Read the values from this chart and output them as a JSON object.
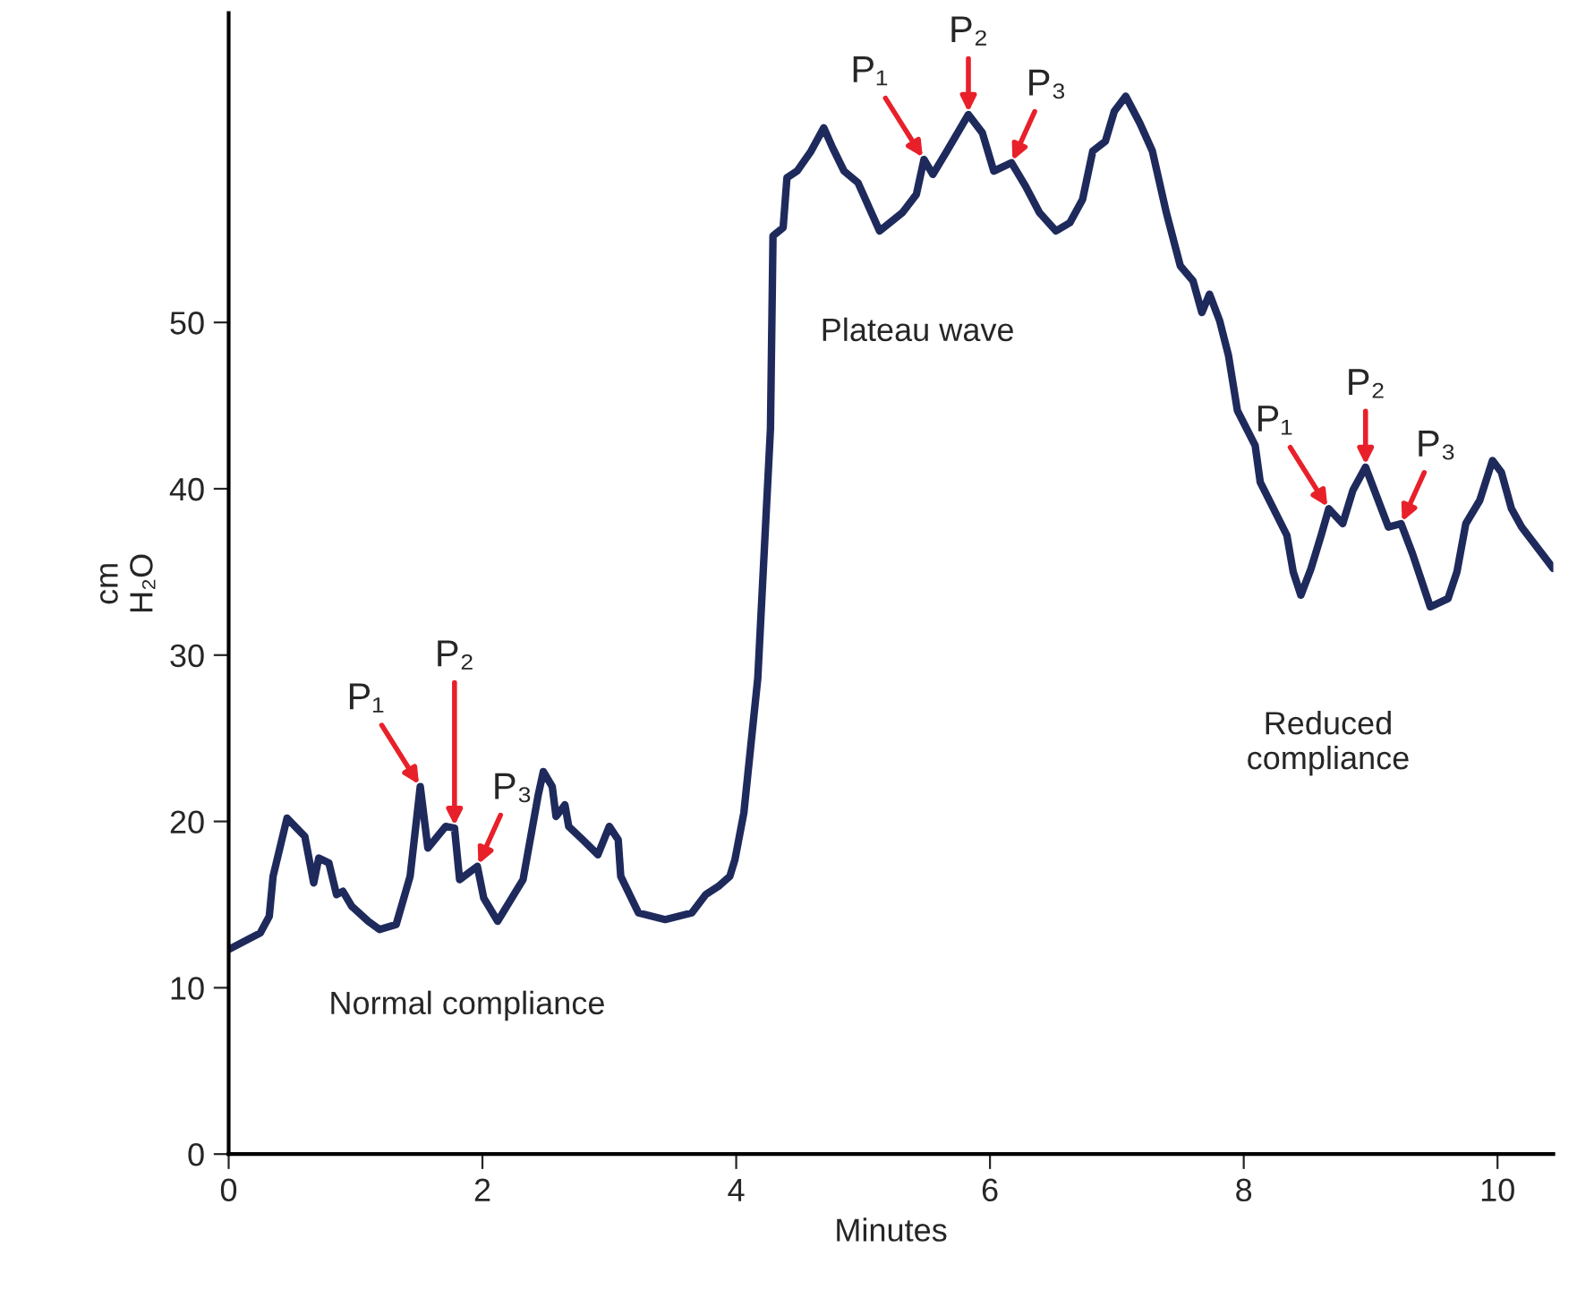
{
  "chart_data": {
    "type": "line",
    "xlabel": "Minutes",
    "ylabel": "cm\nH₂O",
    "x": [
      0,
      0.25,
      0.32,
      0.35,
      0.46,
      0.6,
      0.67,
      0.71,
      0.79,
      0.85,
      0.9,
      0.97,
      1.1,
      1.19,
      1.32,
      1.43,
      1.51,
      1.57,
      1.71,
      1.78,
      1.82,
      1.96,
      2.01,
      2.12,
      2.32,
      2.44,
      2.48,
      2.55,
      2.58,
      2.65,
      2.68,
      2.79,
      2.91,
      3.0,
      3.07,
      3.09,
      3.23,
      3.44,
      3.65,
      3.76,
      3.86,
      3.95,
      3.99,
      4.06,
      4.17,
      4.27,
      4.29,
      4.37,
      4.4,
      4.48,
      4.59,
      4.69,
      4.76,
      4.85,
      4.96,
      5.13,
      5.31,
      5.42,
      5.48,
      5.55,
      5.66,
      5.83,
      5.94,
      6.03,
      6.17,
      6.28,
      6.39,
      6.52,
      6.63,
      6.73,
      6.81,
      6.91,
      6.98,
      7.07,
      7.18,
      7.28,
      7.39,
      7.5,
      7.6,
      7.67,
      7.73,
      7.81,
      7.88,
      7.95,
      8.09,
      8.13,
      8.34,
      8.39,
      8.45,
      8.53,
      8.61,
      8.67,
      8.78,
      8.86,
      8.96,
      9.06,
      9.14,
      9.24,
      9.33,
      9.47,
      9.61,
      9.68,
      9.75,
      9.86,
      9.96,
      10.03,
      10.11,
      10.19,
      10.44
    ],
    "series": [
      {
        "color": "#1f2a5c",
        "values": [
          12.3,
          13.3,
          14.3,
          16.7,
          20.2,
          19.1,
          16.3,
          17.8,
          17.5,
          15.6,
          15.8,
          14.9,
          14.0,
          13.5,
          13.8,
          16.7,
          22.1,
          18.4,
          19.7,
          19.6,
          16.5,
          17.3,
          15.4,
          14.0,
          16.5,
          21.6,
          23.0,
          22.1,
          20.3,
          21.0,
          19.7,
          18.9,
          18.0,
          19.7,
          18.9,
          16.7,
          14.5,
          14.1,
          14.5,
          15.6,
          16.1,
          16.7,
          17.7,
          20.5,
          28.6,
          43.6,
          55.2,
          55.7,
          58.7,
          59.1,
          60.3,
          61.7,
          60.5,
          59.1,
          58.4,
          55.5,
          56.6,
          57.7,
          59.8,
          58.9,
          60.3,
          62.5,
          61.4,
          59.1,
          59.6,
          58.2,
          56.6,
          55.5,
          56.0,
          57.4,
          60.3,
          60.9,
          62.7,
          63.6,
          62.0,
          60.3,
          56.6,
          53.4,
          52.5,
          50.6,
          51.7,
          50.1,
          48.0,
          44.7,
          42.6,
          40.4,
          37.2,
          35.0,
          33.6,
          35.2,
          37.2,
          38.8,
          37.9,
          39.9,
          41.3,
          39.3,
          37.7,
          37.9,
          36.1,
          32.9,
          33.4,
          35.0,
          37.9,
          39.3,
          41.7,
          41.0,
          38.8,
          37.7,
          35.2
        ]
      }
    ],
    "xlim": [
      0,
      10.44
    ],
    "ylim": [
      0,
      68.6
    ],
    "xticks": [
      0,
      2,
      4,
      6,
      8,
      10
    ],
    "yticks": [
      0,
      10,
      20,
      30,
      40,
      50
    ],
    "grid": false,
    "marker": "none",
    "line_style": "solid",
    "annotations": [
      {
        "text": "P₁",
        "x": 1.51,
        "y": 22.1
      },
      {
        "text": "P₂",
        "x": 1.78,
        "y": 19.6
      },
      {
        "text": "P₃",
        "x": 1.96,
        "y": 17.3
      },
      {
        "text": "P₁",
        "x": 5.48,
        "y": 59.8
      },
      {
        "text": "P₂",
        "x": 5.83,
        "y": 62.5
      },
      {
        "text": "P₃",
        "x": 6.17,
        "y": 59.6
      },
      {
        "text": "P₁",
        "x": 8.67,
        "y": 38.8
      },
      {
        "text": "P₂",
        "x": 8.96,
        "y": 41.3
      },
      {
        "text": "P₃",
        "x": 9.24,
        "y": 37.9
      },
      "Normal compliance",
      "Plateau wave",
      "Reduced\ncompliance"
    ]
  }
}
